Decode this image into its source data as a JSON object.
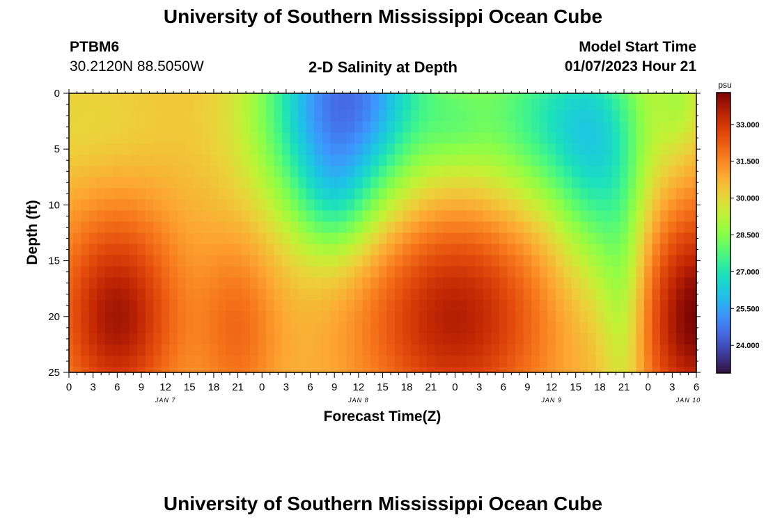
{
  "header": {
    "title": "University of Southern Mississippi Ocean Cube",
    "station": "PTBM6",
    "coordinates": "30.2120N  88.5050W",
    "subtitle": "2-D Salinity at Depth",
    "model_start_label": "Model Start Time",
    "model_start_value": "01/07/2023 Hour 21",
    "repeat_title": "University of Southern Mississippi Ocean Cube"
  },
  "chart_data": {
    "type": "heatmap",
    "title": "2-D Salinity at Depth",
    "xlabel": "Forecast Time(Z)",
    "ylabel": "Depth (ft)",
    "x_unit": "hours (Z)",
    "x_tick_labels": [
      "0",
      "3",
      "6",
      "9",
      "12",
      "15",
      "18",
      "21",
      "0",
      "3",
      "6",
      "9",
      "12",
      "15",
      "18",
      "21",
      "0",
      "3",
      "6",
      "9",
      "12",
      "15",
      "18",
      "21",
      "0",
      "3",
      "6"
    ],
    "x_range_hours": [
      0,
      78
    ],
    "day_labels": [
      "JAN 7",
      "JAN 8",
      "JAN 9",
      "JAN 10"
    ],
    "y_range": [
      0,
      25
    ],
    "y_ticks": [
      0,
      5,
      10,
      15,
      20,
      25
    ],
    "y_inverted": true,
    "colorbar": {
      "unit": "psu",
      "range": [
        22.9,
        34.3
      ],
      "ticks": [
        "33.000",
        "31.500",
        "30.000",
        "28.500",
        "27.000",
        "25.500",
        "24.000"
      ],
      "colormap": "turbo"
    },
    "grid": {
      "resolution_hours": 1,
      "resolution_depth_ft": 1,
      "columns": 79,
      "rows": 26
    },
    "series": [
      {
        "feature": "salty-bottom-core",
        "center_hour": 6,
        "center_depth_ft": 20,
        "peak_psu": 33.5
      },
      {
        "feature": "salty-bottom-core",
        "center_hour": 21,
        "center_depth_ft": 21,
        "peak_psu": 31.8
      },
      {
        "feature": "salty-bottom-core",
        "center_hour": 48,
        "center_depth_ft": 20,
        "peak_psu": 33.4
      },
      {
        "feature": "salty-bottom-core",
        "center_hour": 78,
        "center_depth_ft": 20,
        "peak_psu": 34.0
      },
      {
        "feature": "fresh-surface-lens",
        "center_hour": 36,
        "center_depth_ft": 0,
        "peak_psu": 23.4
      },
      {
        "feature": "fresh-surface-lens",
        "center_hour": 66,
        "center_depth_ft": 4,
        "peak_psu": 26.0
      }
    ]
  }
}
